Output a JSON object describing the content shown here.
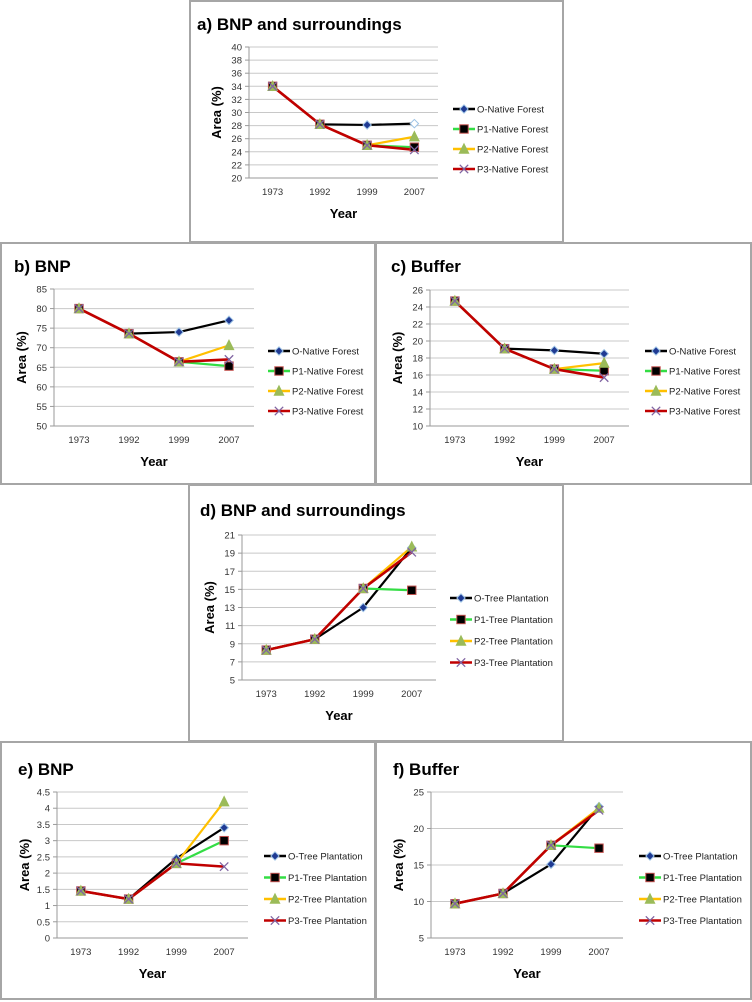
{
  "chart_data": [
    {
      "type": "line",
      "title": "a) BNP and surroundings",
      "xlabel": "Year",
      "ylabel": "Area (%)",
      "categories": [
        "1973",
        "1992",
        "1999",
        "2007"
      ],
      "ylim": [
        20,
        40
      ],
      "yticks": [
        20,
        22,
        24,
        26,
        28,
        30,
        32,
        34,
        36,
        38,
        40
      ],
      "grid": true,
      "legend": "right",
      "series": [
        {
          "name": "O-Native Forest",
          "values": [
            34,
            28.2,
            28.1,
            28.3
          ]
        },
        {
          "name": "P1-Native Forest",
          "values": [
            34,
            28.2,
            25.0,
            24.7
          ]
        },
        {
          "name": "P2-Native Forest",
          "values": [
            34,
            28.2,
            25.0,
            26.3
          ]
        },
        {
          "name": "P3-Native Forest",
          "values": [
            34,
            28.2,
            25.0,
            24.3
          ]
        }
      ]
    },
    {
      "type": "line",
      "title": "b) BNP",
      "xlabel": "Year",
      "ylabel": "Area (%)",
      "categories": [
        "1973",
        "1992",
        "1999",
        "2007"
      ],
      "ylim": [
        50,
        85
      ],
      "yticks": [
        50,
        55,
        60,
        65,
        70,
        75,
        80,
        85
      ],
      "grid": true,
      "legend": "right",
      "series": [
        {
          "name": "O-Native Forest",
          "values": [
            80,
            73.6,
            74.0,
            77.0
          ]
        },
        {
          "name": "P1-Native Forest",
          "values": [
            80,
            73.6,
            66.4,
            65.3
          ]
        },
        {
          "name": "P2-Native Forest",
          "values": [
            80,
            73.6,
            66.4,
            70.6
          ]
        },
        {
          "name": "P3-Native Forest",
          "values": [
            80,
            73.6,
            66.4,
            67.0
          ]
        }
      ]
    },
    {
      "type": "line",
      "title": "c) Buffer",
      "xlabel": "Year",
      "ylabel": "Area (%)",
      "categories": [
        "1973",
        "1992",
        "1999",
        "2007"
      ],
      "ylim": [
        10,
        26
      ],
      "yticks": [
        10,
        12,
        14,
        16,
        18,
        20,
        22,
        24,
        26
      ],
      "grid": true,
      "legend": "right",
      "series": [
        {
          "name": "O-Native Forest",
          "values": [
            24.7,
            19.1,
            18.9,
            18.5
          ]
        },
        {
          "name": "P1-Native Forest",
          "values": [
            24.7,
            19.1,
            16.7,
            16.5
          ]
        },
        {
          "name": "P2-Native Forest",
          "values": [
            24.7,
            19.1,
            16.7,
            17.4
          ]
        },
        {
          "name": "P3-Native Forest",
          "values": [
            24.7,
            19.1,
            16.7,
            15.7
          ]
        }
      ]
    },
    {
      "type": "line",
      "title": "d) BNP and surroundings",
      "xlabel": "Year",
      "ylabel": "Area (%)",
      "categories": [
        "1973",
        "1992",
        "1999",
        "2007"
      ],
      "ylim": [
        5,
        21
      ],
      "yticks": [
        5,
        7,
        9,
        11,
        13,
        15,
        17,
        19,
        21
      ],
      "grid": true,
      "legend": "right",
      "series": [
        {
          "name": "O-Tree Plantation",
          "values": [
            8.3,
            9.5,
            13.0,
            19.6
          ]
        },
        {
          "name": "P1-Tree Plantation",
          "values": [
            8.3,
            9.5,
            15.1,
            14.9
          ]
        },
        {
          "name": "P2-Tree Plantation",
          "values": [
            8.3,
            9.5,
            15.1,
            19.7
          ]
        },
        {
          "name": "P3-Tree Plantation",
          "values": [
            8.3,
            9.5,
            15.1,
            19.1
          ]
        }
      ]
    },
    {
      "type": "line",
      "title": "e) BNP",
      "xlabel": "Year",
      "ylabel": "Area (%)",
      "categories": [
        "1973",
        "1992",
        "1999",
        "2007"
      ],
      "ylim": [
        0,
        4.5
      ],
      "yticks": [
        0,
        0.5,
        1,
        1.5,
        2,
        2.5,
        3,
        3.5,
        4,
        4.5
      ],
      "grid": true,
      "legend": "right",
      "series": [
        {
          "name": "O-Tree Plantation",
          "values": [
            1.45,
            1.2,
            2.45,
            3.4
          ]
        },
        {
          "name": "P1-Tree Plantation",
          "values": [
            1.45,
            1.2,
            2.3,
            3.0
          ]
        },
        {
          "name": "P2-Tree Plantation",
          "values": [
            1.45,
            1.2,
            2.3,
            4.2
          ]
        },
        {
          "name": "P3-Tree Plantation",
          "values": [
            1.45,
            1.2,
            2.3,
            2.2
          ]
        }
      ]
    },
    {
      "type": "line",
      "title": "f) Buffer",
      "xlabel": "Year",
      "ylabel": "Area (%)",
      "categories": [
        "1973",
        "1992",
        "1999",
        "2007"
      ],
      "ylim": [
        5,
        25
      ],
      "yticks": [
        5,
        10,
        15,
        20,
        25
      ],
      "grid": true,
      "legend": "right",
      "series": [
        {
          "name": "O-Tree Plantation",
          "values": [
            9.7,
            11.1,
            15.1,
            23.0
          ]
        },
        {
          "name": "P1-Tree Plantation",
          "values": [
            9.7,
            11.1,
            17.7,
            17.3
          ]
        },
        {
          "name": "P2-Tree Plantation",
          "values": [
            9.7,
            11.1,
            17.7,
            22.8
          ]
        },
        {
          "name": "P3-Tree Plantation",
          "values": [
            9.7,
            11.1,
            17.7,
            22.5
          ]
        }
      ]
    }
  ],
  "series_style": [
    {
      "color": "#000000",
      "marker": "diamond",
      "marker_fill": "#1f3a93",
      "marker_edge": "#9dc3e6"
    },
    {
      "color": "#33dd44",
      "marker": "square",
      "marker_fill": "#000000",
      "marker_edge": "#c0504d"
    },
    {
      "color": "#ffc000",
      "marker": "triangle",
      "marker_fill": "#9bbb59",
      "marker_edge": "#9bbb59"
    },
    {
      "color": "#c00000",
      "marker": "x",
      "marker_fill": "none",
      "marker_edge": "#8064a2"
    }
  ]
}
